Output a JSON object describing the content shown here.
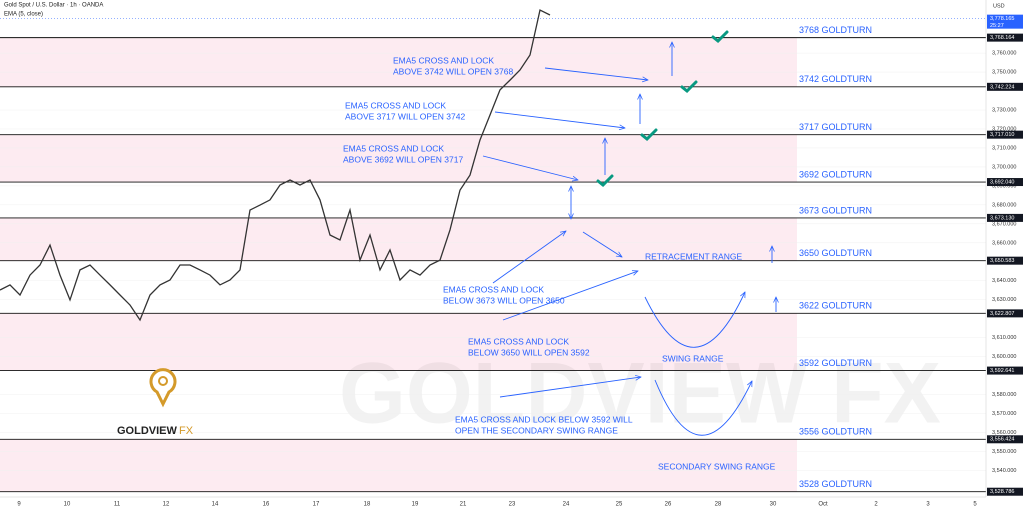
{
  "chart_data": {
    "type": "line",
    "header": {
      "symbol": "Gold Spot / U.S. Dollar · 1h · OANDA",
      "indicator": "EMA (5, close)",
      "currency": "USD"
    },
    "series": [
      {
        "name": "Gold Spot",
        "color": "#333333",
        "values": [
          3635.1,
          3637.8,
          3632.5,
          3643.0,
          3648.3,
          3658.8,
          3643.0,
          3629.9,
          3645.7,
          3648.3,
          3643.0,
          3637.8,
          3632.5,
          3627.2,
          3619.3,
          3632.5,
          3637.8,
          3640.4,
          3648.3,
          3648.3,
          3645.7,
          3643.0,
          3637.8,
          3640.4,
          3645.7,
          3677.3,
          3679.9,
          3682.6,
          3690.5,
          3693.1,
          3690.5,
          3693.1,
          3682.6,
          3664.1,
          3661.5,
          3677.3,
          3650.9,
          3664.1,
          3645.7,
          3656.2,
          3640.4,
          3645.7,
          3643.0,
          3648.3,
          3650.9,
          3666.8,
          3687.8,
          3695.7,
          3714.2,
          3727.4,
          3740.6,
          3745.8,
          3751.1,
          3759.0,
          3782.7,
          3780.1
        ]
      }
    ],
    "ylim": [
      3526,
      3788
    ],
    "yticks": [
      {
        "value": 3540,
        "label": "3,540.000"
      },
      {
        "value": 3550,
        "label": "3,550.000"
      },
      {
        "value": 3560,
        "label": "3,560.000"
      },
      {
        "value": 3570,
        "label": "3,570.000"
      },
      {
        "value": 3580,
        "label": "3,580.000"
      },
      {
        "value": 3600,
        "label": "3,600.000"
      },
      {
        "value": 3610,
        "label": "3,610.000"
      },
      {
        "value": 3630,
        "label": "3,630.000"
      },
      {
        "value": 3640,
        "label": "3,640.000"
      },
      {
        "value": 3660,
        "label": "3,660.000"
      },
      {
        "value": 3670,
        "label": "3,670.000"
      },
      {
        "value": 3680,
        "label": "3,680.000"
      },
      {
        "value": 3690,
        "label": "3,690.000"
      },
      {
        "value": 3700,
        "label": "3,700.000"
      },
      {
        "value": 3710,
        "label": "3,710.000"
      },
      {
        "value": 3720,
        "label": "3,720.000"
      },
      {
        "value": 3730,
        "label": "3,730.000"
      },
      {
        "value": 3750,
        "label": "3,750.000"
      },
      {
        "value": 3760,
        "label": "3,760.000"
      }
    ],
    "x_labels": [
      "9",
      "10",
      "11",
      "12",
      "14",
      "16",
      "17",
      "18",
      "19",
      "21",
      "23",
      "24",
      "25",
      "26",
      "28",
      "30",
      "Oct",
      "2",
      "3",
      "5"
    ],
    "current_price": {
      "value": 3778.165,
      "label": "3,778.165"
    },
    "countdown": "25:27",
    "levels": [
      {
        "value": 3768.164,
        "label": "3,768.164",
        "name": "3768 GOLDTURN"
      },
      {
        "value": 3742.224,
        "label": "3,742.224",
        "name": "3742 GOLDTURN"
      },
      {
        "value": 3717.01,
        "label": "3,717.010",
        "name": "3717 GOLDTURN"
      },
      {
        "value": 3692.04,
        "label": "3,692.040",
        "name": "3692 GOLDTURN"
      },
      {
        "value": 3673.13,
        "label": "3,673.130",
        "name": "3673 GOLDTURN"
      },
      {
        "value": 3650.583,
        "label": "3,650.583",
        "name": "3650 GOLDTURN"
      },
      {
        "value": 3622.807,
        "label": "3,622.807",
        "name": "3622 GOLDTURN"
      },
      {
        "value": 3592.641,
        "label": "3,592.641",
        "name": "3592 GOLDTURN"
      },
      {
        "value": 3556.424,
        "label": "3,556.424",
        "name": "3556 GOLDTURN"
      },
      {
        "value": 3528.786,
        "label": "3,528.786",
        "name": "3528 GOLDTURN"
      }
    ],
    "annotations": [
      [
        "EMA5 CROSS AND LOCK",
        "ABOVE 3742 WILL OPEN 3768"
      ],
      [
        "EMA5 CROSS AND LOCK",
        "ABOVE 3717 WILL OPEN 3742"
      ],
      [
        "EMA5 CROSS AND LOCK",
        "ABOVE 3692 WILL OPEN 3717"
      ],
      [
        "EMA5 CROSS AND LOCK",
        "BELOW 3673 WILL OPEN 3650"
      ],
      [
        "EMA5 CROSS AND LOCK",
        "BELOW 3650 WILL OPEN 3592"
      ],
      [
        "EMA5 CROSS AND LOCK BELOW 3592 WILL",
        "OPEN THE SECONDARY SWING RANGE"
      ]
    ],
    "ranges": [
      "RETRACEMENT RANGE",
      "SWING RANGE",
      "SECONDARY SWING RANGE"
    ],
    "logo": "GOLDVIEW",
    "logo_suffix": "FX",
    "watermark": "GOLDVIEW FX"
  }
}
